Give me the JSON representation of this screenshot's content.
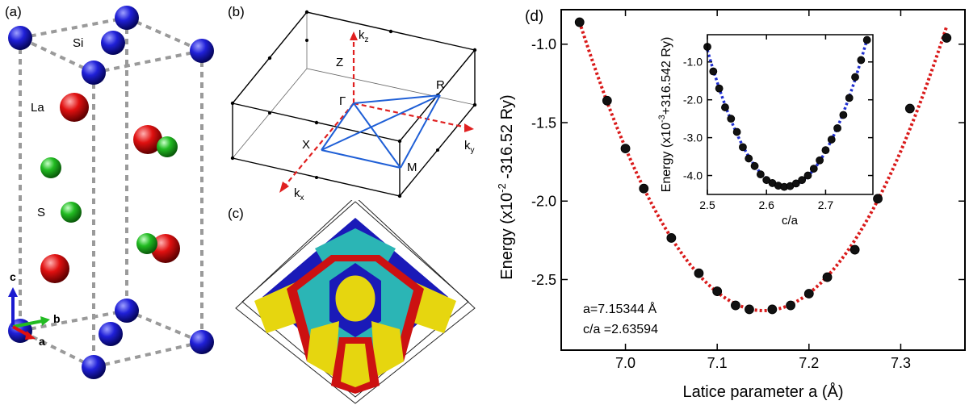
{
  "panels": {
    "a": {
      "label": "(a)",
      "atom_labels": {
        "si": "Si",
        "la": "La",
        "s": "S"
      },
      "axes": {
        "c": "c",
        "b": "b",
        "a": "a"
      },
      "colors": {
        "si": "#1a1ad0",
        "la": "#e01010",
        "s": "#22bb22"
      }
    },
    "b": {
      "label": "(b)",
      "points": {
        "gamma": "Γ",
        "x": "X",
        "m": "M",
        "r": "R",
        "z": "Z"
      },
      "axes": {
        "kz": "k",
        "kz_sub": "z",
        "ky": "k",
        "ky_sub": "y",
        "kx": "k",
        "kx_sub": "x"
      },
      "colors": {
        "path": "#1f5fd6",
        "axis": "#e02020"
      }
    },
    "c": {
      "label": "(c)",
      "colors": {
        "cyan": "#2bb5b5",
        "yellow": "#e6d60f",
        "red": "#cc1111",
        "blue": "#1a1ab8"
      }
    },
    "d": {
      "label": "(d)",
      "annotation_a": "a=7.15344 Å",
      "annotation_ca": "c/a =2.63594",
      "inset_ylabel_lines": [
        "Energy (x10",
        "-3",
        "+316.542 Ry)"
      ],
      "main_ylabel_parts": [
        "Energy (x10",
        "-2",
        " -316.52 Ry)"
      ]
    }
  },
  "chart_data": [
    {
      "type": "scatter",
      "title": "",
      "xlabel": "Latice parameter a (Å)",
      "ylabel": "Energy (x10-2 -316.52 Ry)",
      "xlim": [
        6.93,
        7.37
      ],
      "ylim": [
        -2.95,
        -0.78
      ],
      "xticks": [
        7.0,
        7.1,
        7.2,
        7.3
      ],
      "xtick_labels": [
        "7.0",
        "7.1",
        "7.2",
        "7.3"
      ],
      "yticks": [
        -2.5,
        -2.0,
        -1.5,
        -1.0
      ],
      "ytick_labels": [
        "-2.5",
        "-2.0",
        "-1.5",
        "-1.0"
      ],
      "grid": false,
      "series": [
        {
          "marker": "black-dot",
          "fit_color": "#d91a1a",
          "x": [
            6.95,
            6.98,
            7.0,
            7.02,
            7.05,
            7.08,
            7.1,
            7.12,
            7.135,
            7.16,
            7.18,
            7.2,
            7.22,
            7.25,
            7.275,
            7.31,
            7.35
          ],
          "y": [
            -0.86,
            -1.36,
            -1.665,
            -1.92,
            -2.235,
            -2.46,
            -2.575,
            -2.665,
            -2.69,
            -2.69,
            -2.665,
            -2.59,
            -2.485,
            -2.31,
            -1.985,
            -1.41,
            -0.96
          ]
        }
      ]
    },
    {
      "type": "scatter",
      "title": "",
      "xlabel": "c/a",
      "ylabel": "Energy (x10-3 +316.542 Ry)",
      "xlim": [
        2.5,
        2.78
      ],
      "ylim": [
        -4.5,
        -0.28
      ],
      "xticks": [
        2.5,
        2.6,
        2.7
      ],
      "xtick_labels": [
        "2.5",
        "2.6",
        "2.7"
      ],
      "yticks": [
        -4.0,
        -3.0,
        -2.0,
        -1.0
      ],
      "ytick_labels": [
        "-4.0",
        "-3.0",
        "-2.0",
        "-1.0"
      ],
      "grid": false,
      "series": [
        {
          "marker": "black-dot",
          "fit_color": "#1f2fd0",
          "x": [
            2.5,
            2.51,
            2.52,
            2.53,
            2.54,
            2.55,
            2.56,
            2.57,
            2.58,
            2.59,
            2.6,
            2.61,
            2.62,
            2.63,
            2.64,
            2.65,
            2.66,
            2.67,
            2.68,
            2.69,
            2.7,
            2.71,
            2.72,
            2.73,
            2.74,
            2.75,
            2.76,
            2.77
          ],
          "y": [
            -0.6,
            -1.25,
            -1.7,
            -2.2,
            -2.5,
            -2.85,
            -3.25,
            -3.55,
            -3.75,
            -3.97,
            -4.12,
            -4.2,
            -4.27,
            -4.3,
            -4.28,
            -4.21,
            -4.12,
            -4.0,
            -3.82,
            -3.6,
            -3.33,
            -3.05,
            -2.75,
            -2.4,
            -1.95,
            -1.4,
            -0.95,
            -0.42
          ]
        }
      ]
    }
  ]
}
